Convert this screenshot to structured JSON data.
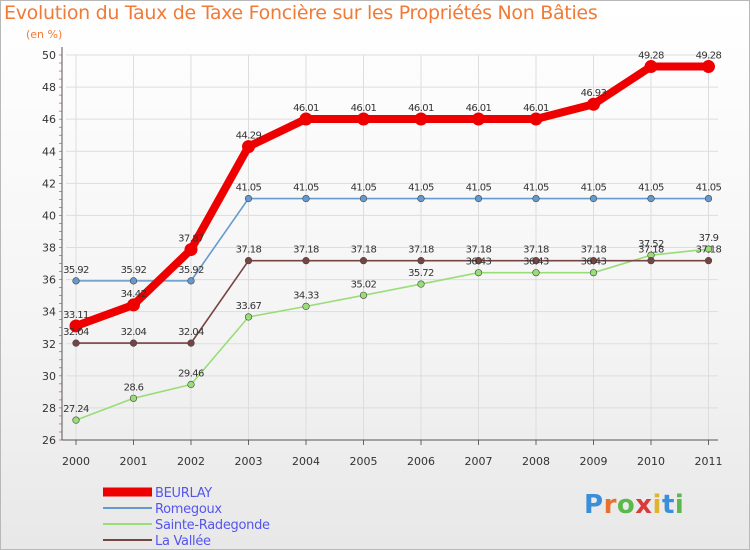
{
  "header": {
    "title": "Evolution du Taux de Taxe Foncière sur les Propriétés Non Bâties",
    "unit": "(en %)"
  },
  "logo": {
    "letters": [
      "P",
      "r",
      "o",
      "x",
      "i",
      "t",
      "i"
    ],
    "colors": [
      "#3b8fd9",
      "#e8722c",
      "#5bb84a",
      "#d93b3b",
      "#e0b22d",
      "#3b8fd9",
      "#5bb84a"
    ]
  },
  "chart_data": {
    "type": "line",
    "title": "Evolution du Taux de Taxe Foncière sur les Propriétés Non Bâties",
    "ylabel": "(en %)",
    "xlabel": "",
    "ylim": [
      26,
      50
    ],
    "y_ticks": [
      26,
      28,
      30,
      32,
      34,
      36,
      38,
      40,
      42,
      44,
      46,
      48,
      50
    ],
    "x": [
      "2000",
      "2001",
      "2002",
      "2003",
      "2004",
      "2005",
      "2006",
      "2007",
      "2008",
      "2009",
      "2010",
      "2011"
    ],
    "legend_position": "bottom-left",
    "series": [
      {
        "name": "BEURLAY",
        "color": "#ee0000",
        "values": [
          33.11,
          34.42,
          37.87,
          44.29,
          46.01,
          46.01,
          46.01,
          46.01,
          46.01,
          46.93,
          49.28,
          49.28
        ],
        "labels": [
          "33.11",
          "34.42",
          "37.87",
          "44.29",
          "46.01",
          "46.01",
          "46.01",
          "46.01",
          "46.01",
          "46.93",
          "49.28",
          "49.28"
        ]
      },
      {
        "name": "Romegoux",
        "color": "#6699cc",
        "values": [
          35.92,
          35.92,
          35.92,
          41.05,
          41.05,
          41.05,
          41.05,
          41.05,
          41.05,
          41.05,
          41.05,
          41.05
        ],
        "labels": [
          "35.92",
          "35.92",
          "35.92",
          "41.05",
          "41.05",
          "41.05",
          "41.05",
          "41.05",
          "41.05",
          "41.05",
          "41.05",
          "41.05"
        ]
      },
      {
        "name": "Sainte-Radegonde",
        "color": "#99dd77",
        "values": [
          27.24,
          28.6,
          29.46,
          33.67,
          34.33,
          35.02,
          35.72,
          36.43,
          36.43,
          36.43,
          37.52,
          37.9
        ],
        "labels": [
          "27.24",
          "28.6",
          "29.46",
          "33.67",
          "34.33",
          "35.02",
          "35.72",
          "36.43",
          "36.43",
          "36.43",
          "37.52",
          "37.9"
        ]
      },
      {
        "name": "La Vallée",
        "color": "#774444",
        "values": [
          32.04,
          32.04,
          32.04,
          37.18,
          37.18,
          37.18,
          37.18,
          37.18,
          37.18,
          37.18,
          37.18,
          37.18
        ],
        "labels": [
          "32.04",
          "32.04",
          "32.04",
          "37.18",
          "37.18",
          "37.18",
          "37.18",
          "37.18",
          "37.18",
          "37.18",
          "37.18",
          "37.18"
        ]
      }
    ]
  }
}
